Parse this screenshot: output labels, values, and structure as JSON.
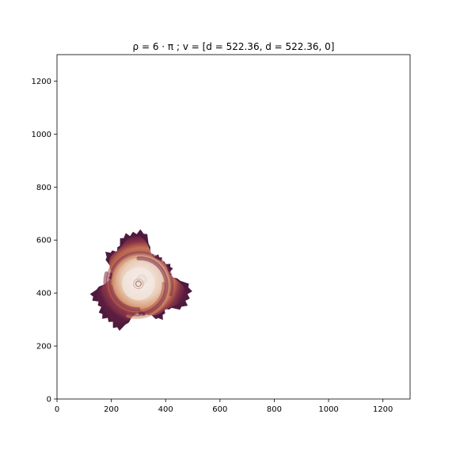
{
  "chart_data": {
    "type": "heatmap",
    "title": "ρ = 6 · π ; v = [d = 522.36, d = 522.36, 0]",
    "xlabel": "",
    "ylabel": "",
    "xlim": [
      0,
      1300
    ],
    "ylim": [
      0,
      1300
    ],
    "x_ticks": [
      "0",
      "200",
      "400",
      "600",
      "800",
      "1000",
      "1200"
    ],
    "y_ticks": [
      "0",
      "200",
      "400",
      "600",
      "800",
      "1000",
      "1200"
    ],
    "grid": false,
    "colormap": [
      "#f3e9e4",
      "#e6c3ad",
      "#d18e6a",
      "#b25a48",
      "#7c2c4a",
      "#4e1a3e"
    ],
    "feature": {
      "kind": "spiral-storm",
      "center": [
        300,
        435
      ],
      "eye_radius": 20,
      "core_radius": 110,
      "outer_radius": 200
    }
  }
}
